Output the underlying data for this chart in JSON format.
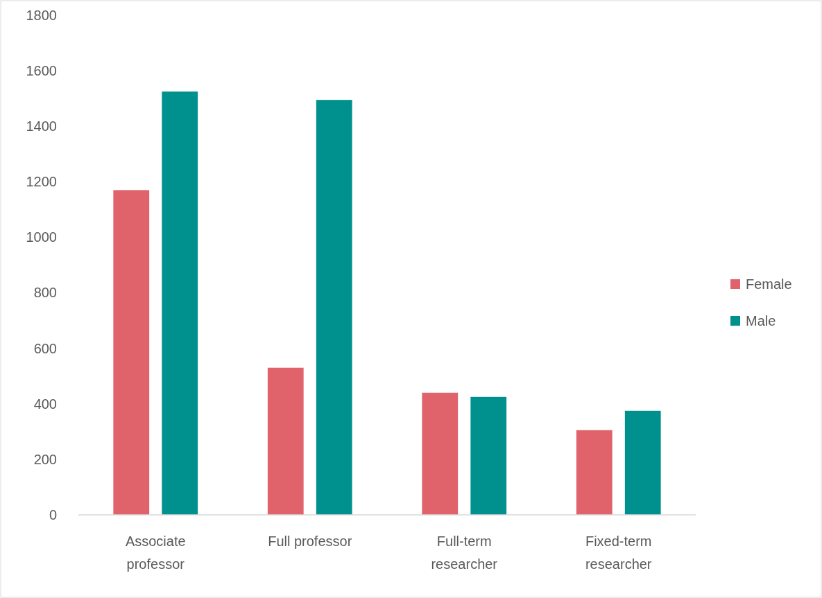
{
  "chart_data": {
    "type": "bar",
    "categories": [
      "Associate professor",
      "Full professor",
      "Full-term researcher",
      "Fixed-term researcher"
    ],
    "series": [
      {
        "name": "Female",
        "color": "#e0626a",
        "values": [
          1170,
          530,
          440,
          305
        ]
      },
      {
        "name": "Male",
        "color": "#00918f",
        "values": [
          1525,
          1495,
          425,
          375
        ]
      }
    ],
    "ylim": [
      0,
      1800
    ],
    "yticks": [
      0,
      200,
      400,
      600,
      800,
      1000,
      1200,
      1400,
      1600,
      1800
    ],
    "grid": false,
    "legend": "right"
  }
}
